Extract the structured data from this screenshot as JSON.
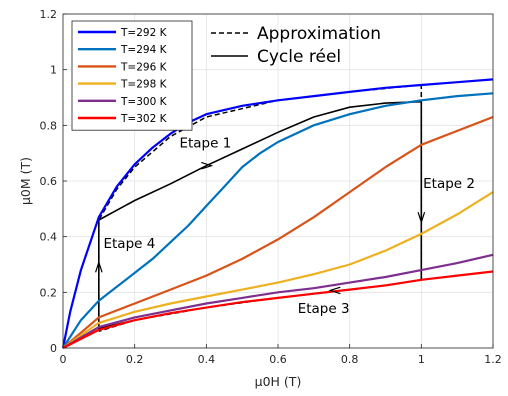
{
  "chart_data": {
    "type": "line",
    "xlabel": "μ0H (T)",
    "ylabel": "μ0M (T)",
    "xlim": [
      0,
      1.2
    ],
    "ylim": [
      0,
      1.2
    ],
    "xticks": [
      "0",
      "0.2",
      "0.4",
      "0.6",
      "0.8",
      "1",
      "1.2"
    ],
    "yticks": [
      "0",
      "0.2",
      "0.4",
      "0.6",
      "0.8",
      "1",
      "1.2"
    ],
    "grid": true,
    "legend_position": "top-left",
    "series": [
      {
        "name": "T=292 K",
        "color": "#0000ff",
        "x": [
          0,
          0.02,
          0.05,
          0.1,
          0.15,
          0.2,
          0.25,
          0.3,
          0.35,
          0.4,
          0.5,
          0.6,
          0.7,
          0.8,
          0.9,
          1.0,
          1.1,
          1.2
        ],
        "y": [
          0,
          0.13,
          0.28,
          0.47,
          0.58,
          0.66,
          0.72,
          0.77,
          0.81,
          0.84,
          0.87,
          0.89,
          0.905,
          0.92,
          0.935,
          0.945,
          0.955,
          0.965
        ]
      },
      {
        "name": "T=294 K",
        "color": "#0072bd",
        "x": [
          0,
          0.05,
          0.1,
          0.15,
          0.2,
          0.25,
          0.3,
          0.35,
          0.4,
          0.45,
          0.5,
          0.55,
          0.6,
          0.7,
          0.8,
          0.9,
          1.0,
          1.1,
          1.2
        ],
        "y": [
          0,
          0.1,
          0.17,
          0.22,
          0.27,
          0.32,
          0.38,
          0.44,
          0.51,
          0.58,
          0.65,
          0.7,
          0.74,
          0.8,
          0.84,
          0.87,
          0.89,
          0.905,
          0.915
        ]
      },
      {
        "name": "T=296 K",
        "color": "#d95319",
        "x": [
          0,
          0.1,
          0.2,
          0.3,
          0.4,
          0.5,
          0.6,
          0.7,
          0.8,
          0.9,
          1.0,
          1.1,
          1.2
        ],
        "y": [
          0,
          0.11,
          0.16,
          0.21,
          0.26,
          0.32,
          0.39,
          0.47,
          0.56,
          0.65,
          0.73,
          0.78,
          0.83
        ]
      },
      {
        "name": "T=298 K",
        "color": "#edb120",
        "x": [
          0,
          0.1,
          0.2,
          0.3,
          0.4,
          0.5,
          0.6,
          0.7,
          0.8,
          0.9,
          1.0,
          1.1,
          1.2
        ],
        "y": [
          0,
          0.09,
          0.13,
          0.16,
          0.185,
          0.21,
          0.235,
          0.265,
          0.3,
          0.35,
          0.41,
          0.48,
          0.56
        ]
      },
      {
        "name": "T=300 K",
        "color": "#7e2f8e",
        "x": [
          0,
          0.1,
          0.2,
          0.3,
          0.4,
          0.5,
          0.6,
          0.7,
          0.8,
          0.9,
          1.0,
          1.1,
          1.2
        ],
        "y": [
          0,
          0.075,
          0.11,
          0.135,
          0.16,
          0.18,
          0.2,
          0.215,
          0.235,
          0.255,
          0.28,
          0.305,
          0.335
        ]
      },
      {
        "name": "T=302 K",
        "color": "#ff0000",
        "x": [
          0,
          0.1,
          0.2,
          0.3,
          0.4,
          0.5,
          0.6,
          0.7,
          0.8,
          0.9,
          1.0,
          1.1,
          1.2
        ],
        "y": [
          0,
          0.065,
          0.1,
          0.125,
          0.145,
          0.165,
          0.18,
          0.195,
          0.21,
          0.225,
          0.245,
          0.26,
          0.275
        ]
      }
    ],
    "overlays": [
      {
        "name": "Approximation",
        "style": "dashed",
        "color": "#000000",
        "x": [
          0.1,
          0.1,
          0.15,
          0.2,
          0.3,
          0.4,
          0.6,
          0.8,
          1.0,
          1.0,
          0.9,
          0.8,
          0.6,
          0.4,
          0.2,
          0.1
        ],
        "y": [
          0.06,
          0.46,
          0.57,
          0.65,
          0.76,
          0.83,
          0.89,
          0.92,
          0.945,
          0.245,
          0.225,
          0.21,
          0.18,
          0.145,
          0.1,
          0.06
        ]
      },
      {
        "name": "Cycle réel",
        "style": "solid",
        "color": "#000000",
        "x": [
          0.1,
          0.1,
          0.2,
          0.3,
          0.4,
          0.5,
          0.6,
          0.7,
          0.8,
          0.9,
          1.0,
          1.0,
          0.9,
          0.8,
          0.7,
          0.6,
          0.5,
          0.4,
          0.3,
          0.2,
          0.1
        ],
        "y": [
          0.07,
          0.46,
          0.53,
          0.59,
          0.655,
          0.715,
          0.775,
          0.83,
          0.865,
          0.88,
          0.885,
          0.245,
          0.225,
          0.21,
          0.195,
          0.18,
          0.165,
          0.145,
          0.125,
          0.1,
          0.07
        ]
      }
    ],
    "annotations": [
      {
        "text": "Etape 1",
        "x": 0.325,
        "y": 0.72
      },
      {
        "text": "Etape 2",
        "x": 1.005,
        "y": 0.575
      },
      {
        "text": "Etape 3",
        "x": 0.655,
        "y": 0.125
      },
      {
        "text": "Etape 4",
        "x": 0.113,
        "y": 0.36
      }
    ],
    "arrows": [
      {
        "x": 0.4,
        "y": 0.655,
        "dir": "right"
      },
      {
        "x": 1.0,
        "y": 0.47,
        "dir": "down"
      },
      {
        "x": 0.76,
        "y": 0.207,
        "dir": "left"
      },
      {
        "x": 0.1,
        "y": 0.29,
        "dir": "up"
      }
    ]
  }
}
